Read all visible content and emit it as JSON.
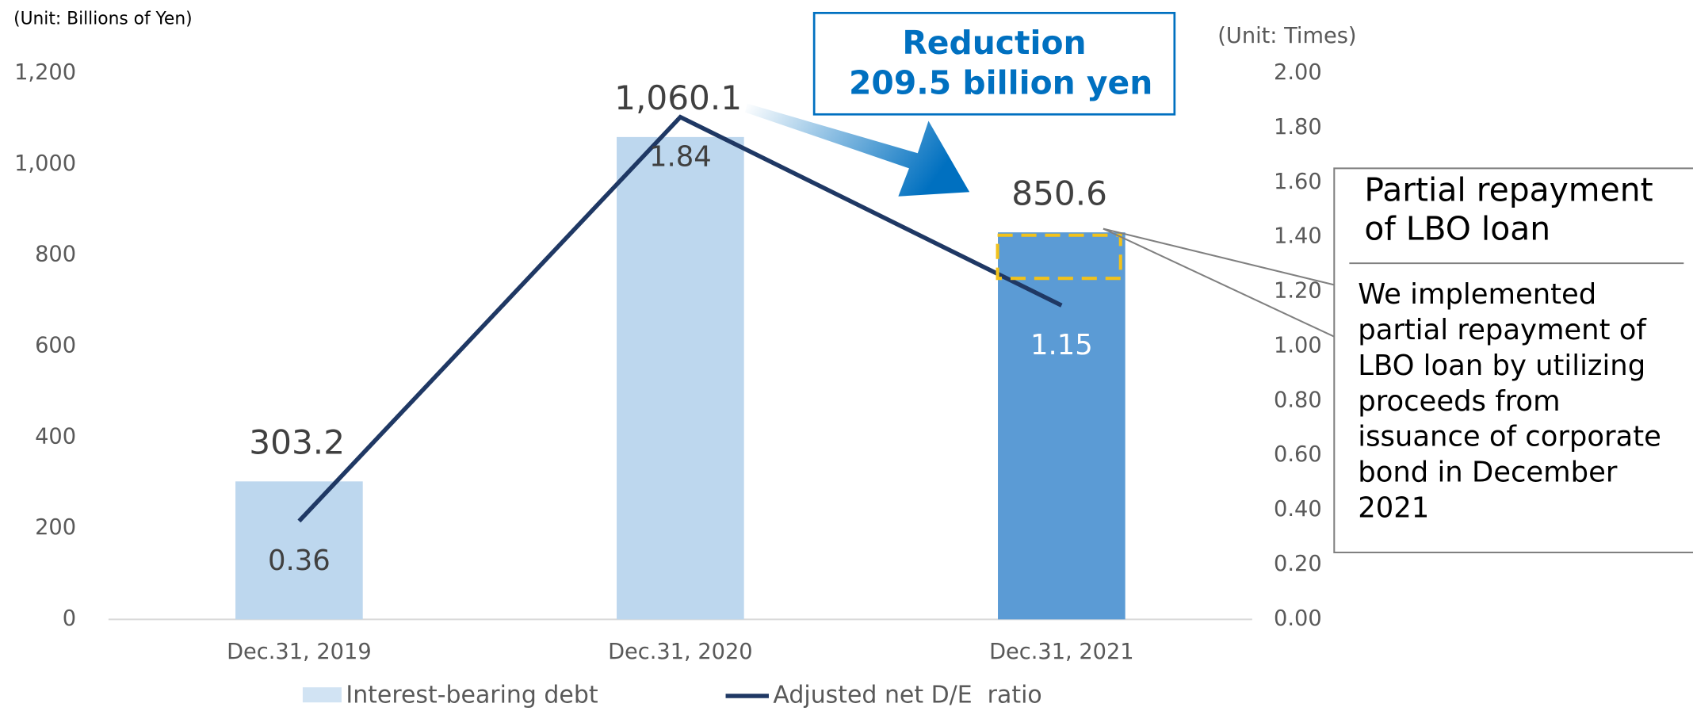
{
  "chart_data": {
    "type": "bar",
    "unit_left": "(Unit: Billions of Yen)",
    "unit_right": "(Unit: Times)",
    "categories": [
      "Dec.31, 2019",
      "Dec.31, 2020",
      "Dec.31, 2021"
    ],
    "series": [
      {
        "name": "Interest-bearing debt",
        "type": "bar",
        "colors": [
          "#bdd7ee",
          "#bdd7ee",
          "#5b9bd5"
        ],
        "values": [
          303.2,
          1060.1,
          850.6
        ],
        "value_labels": [
          "303.2",
          "1,060.1",
          "850.6"
        ]
      },
      {
        "name": "Adjusted net D/E  ratio",
        "type": "line",
        "axis": "y2",
        "color": "#1f3864",
        "values": [
          0.36,
          1.84,
          1.15
        ],
        "label_colors": [
          "#404040",
          "#404040",
          "#ffffff"
        ]
      }
    ],
    "ylim": [
      0,
      1200
    ],
    "yticks": [
      0,
      200,
      400,
      600,
      800,
      {
        "value": 1000,
        "label": "1,000"
      },
      {
        "value": 1200,
        "label": "1,200"
      }
    ],
    "y2lim": [
      0,
      2
    ],
    "y2ticks": [
      {
        "value": 0,
        "label": "0.00"
      },
      {
        "value": 0.2,
        "label": "0.20"
      },
      {
        "value": 0.4,
        "label": "0.40"
      },
      {
        "value": 0.6,
        "label": "0.60"
      },
      {
        "value": 0.8,
        "label": "0.80"
      },
      {
        "value": 1,
        "label": "1.00"
      },
      {
        "value": 1.2,
        "label": "1.20"
      },
      {
        "value": 1.4,
        "label": "1.40"
      },
      {
        "value": 1.6,
        "label": "1.60"
      },
      {
        "value": 1.8,
        "label": "1.80"
      },
      {
        "value": 2,
        "label": "2.00"
      }
    ],
    "annotation": {
      "lines": [
        "Reduction",
        "209.5 billion yen"
      ]
    },
    "callout": {
      "title_lines": [
        "Partial repayment",
        "of LBO loan"
      ],
      "body_lines": [
        "We implemented",
        "partial repayment of",
        "LBO loan by utilizing",
        "proceeds from",
        "issuance of corporate",
        "bond in December",
        "2021"
      ]
    }
  }
}
